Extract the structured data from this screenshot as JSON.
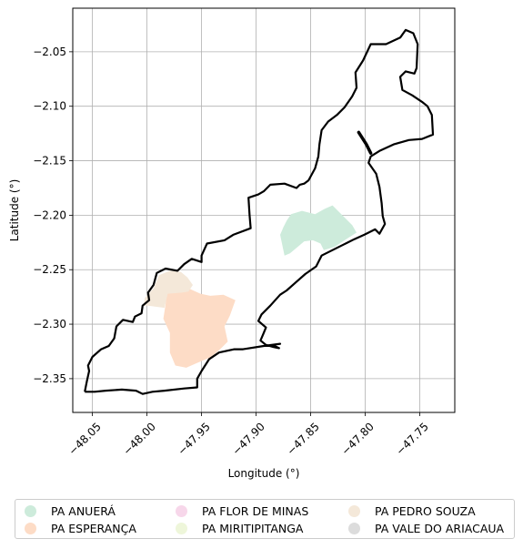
{
  "chart_data": {
    "type": "map",
    "xlabel": "Longitude (°)",
    "ylabel": "Latitude (°)",
    "xlim": [
      -48.068,
      -47.718
    ],
    "ylim": [
      -2.381,
      -2.01
    ],
    "x_ticks": [
      -48.05,
      -48.0,
      -47.95,
      -47.9,
      -47.85,
      -47.8,
      -47.75
    ],
    "x_tick_labels": [
      "−48.05",
      "−48.00",
      "−47.95",
      "−47.90",
      "−47.85",
      "−47.80",
      "−47.75"
    ],
    "y_ticks": [
      -2.05,
      -2.1,
      -2.15,
      -2.2,
      -2.25,
      -2.3,
      -2.35
    ],
    "y_tick_labels": [
      "−2.05",
      "−2.10",
      "−2.15",
      "−2.20",
      "−2.25",
      "−2.30",
      "−2.35"
    ],
    "grid": true,
    "legend_position": "below",
    "legend": [
      {
        "name": "PA ANUERÁ",
        "color": "#cdebdb"
      },
      {
        "name": "PA ESPERANÇA",
        "color": "#fddcc6"
      },
      {
        "name": "PA FLOR DE MINAS",
        "color": "#f7d7ea"
      },
      {
        "name": "PA MIRITIPITANGA",
        "color": "#eef6da"
      },
      {
        "name": "PA PEDRO SOUZA",
        "color": "#f4e8d9"
      },
      {
        "name": "PA VALE DO ARIACAUA",
        "color": "#dcdcdc"
      }
    ],
    "boundary": [
      [
        -48.057,
        -2.362
      ],
      [
        -48.055,
        -2.352
      ],
      [
        -48.053,
        -2.343
      ],
      [
        -48.054,
        -2.338
      ],
      [
        -48.05,
        -2.33
      ],
      [
        -48.042,
        -2.323
      ],
      [
        -48.035,
        -2.32
      ],
      [
        -48.03,
        -2.313
      ],
      [
        -48.028,
        -2.302
      ],
      [
        -48.022,
        -2.296
      ],
      [
        -48.013,
        -2.298
      ],
      [
        -48.011,
        -2.293
      ],
      [
        -48.005,
        -2.29
      ],
      [
        -48.004,
        -2.283
      ],
      [
        -47.998,
        -2.278
      ],
      [
        -47.999,
        -2.271
      ],
      [
        -47.994,
        -2.264
      ],
      [
        -47.991,
        -2.253
      ],
      [
        -47.983,
        -2.249
      ],
      [
        -47.972,
        -2.251
      ],
      [
        -47.966,
        -2.245
      ],
      [
        -47.959,
        -2.24
      ],
      [
        -47.95,
        -2.243
      ],
      [
        -47.95,
        -2.237
      ],
      [
        -47.945,
        -2.226
      ],
      [
        -47.929,
        -2.223
      ],
      [
        -47.921,
        -2.218
      ],
      [
        -47.905,
        -2.212
      ],
      [
        -47.906,
        -2.2
      ],
      [
        -47.907,
        -2.184
      ],
      [
        -47.898,
        -2.181
      ],
      [
        -47.893,
        -2.178
      ],
      [
        -47.887,
        -2.172
      ],
      [
        -47.874,
        -2.171
      ],
      [
        -47.863,
        -2.175
      ],
      [
        -47.86,
        -2.172
      ],
      [
        -47.856,
        -2.171
      ],
      [
        -47.852,
        -2.168
      ],
      [
        -47.846,
        -2.157
      ],
      [
        -47.843,
        -2.146
      ],
      [
        -47.842,
        -2.135
      ],
      [
        -47.84,
        -2.122
      ],
      [
        -47.834,
        -2.114
      ],
      [
        -47.826,
        -2.108
      ],
      [
        -47.819,
        -2.101
      ],
      [
        -47.812,
        -2.091
      ],
      [
        -47.808,
        -2.083
      ],
      [
        -47.809,
        -2.069
      ],
      [
        -47.802,
        -2.058
      ],
      [
        -47.795,
        -2.043
      ],
      [
        -47.781,
        -2.043
      ],
      [
        -47.768,
        -2.037
      ],
      [
        -47.763,
        -2.03
      ],
      [
        -47.756,
        -2.033
      ],
      [
        -47.752,
        -2.043
      ],
      [
        -47.753,
        -2.065
      ],
      [
        -47.755,
        -2.07
      ],
      [
        -47.763,
        -2.068
      ],
      [
        -47.768,
        -2.073
      ],
      [
        -47.766,
        -2.085
      ],
      [
        -47.757,
        -2.09
      ],
      [
        -47.748,
        -2.096
      ],
      [
        -47.743,
        -2.1
      ],
      [
        -47.739,
        -2.108
      ],
      [
        -47.738,
        -2.126
      ],
      [
        -47.748,
        -2.13
      ],
      [
        -47.76,
        -2.131
      ],
      [
        -47.774,
        -2.135
      ],
      [
        -47.787,
        -2.141
      ],
      [
        -47.795,
        -2.146
      ],
      [
        -47.797,
        -2.152
      ],
      [
        -47.79,
        -2.162
      ],
      [
        -47.787,
        -2.174
      ],
      [
        -47.785,
        -2.189
      ],
      [
        -47.784,
        -2.201
      ],
      [
        -47.782,
        -2.208
      ],
      [
        -47.787,
        -2.217
      ],
      [
        -47.791,
        -2.213
      ],
      [
        -47.801,
        -2.218
      ],
      [
        -47.81,
        -2.222
      ],
      [
        -47.82,
        -2.227
      ],
      [
        -47.83,
        -2.232
      ],
      [
        -47.84,
        -2.237
      ],
      [
        -47.845,
        -2.247
      ],
      [
        -47.855,
        -2.254
      ],
      [
        -47.863,
        -2.261
      ],
      [
        -47.872,
        -2.269
      ],
      [
        -47.878,
        -2.273
      ],
      [
        -47.887,
        -2.283
      ],
      [
        -47.895,
        -2.291
      ],
      [
        -47.898,
        -2.297
      ],
      [
        -47.891,
        -2.303
      ],
      [
        -47.893,
        -2.308
      ],
      [
        -47.896,
        -2.315
      ],
      [
        -47.891,
        -2.319
      ],
      [
        -47.884,
        -2.321
      ],
      [
        -47.879,
        -2.322
      ],
      [
        -47.885,
        -2.319
      ],
      [
        -47.878,
        -2.318
      ],
      [
        -47.893,
        -2.32
      ],
      [
        -47.912,
        -2.323
      ],
      [
        -47.92,
        -2.323
      ],
      [
        -47.934,
        -2.326
      ],
      [
        -47.943,
        -2.332
      ],
      [
        -47.95,
        -2.343
      ],
      [
        -47.954,
        -2.35
      ],
      [
        -47.954,
        -2.358
      ],
      [
        -47.966,
        -2.359
      ],
      [
        -47.984,
        -2.361
      ],
      [
        -47.995,
        -2.362
      ],
      [
        -48.004,
        -2.364
      ],
      [
        -48.01,
        -2.361
      ],
      [
        -48.023,
        -2.36
      ],
      [
        -48.038,
        -2.361
      ],
      [
        -48.048,
        -2.362
      ],
      [
        -48.057,
        -2.362
      ]
    ],
    "boundary_tail": [
      [
        -47.806,
        -2.124
      ],
      [
        -47.799,
        -2.135
      ],
      [
        -47.795,
        -2.143
      ]
    ],
    "regions": [
      {
        "legend_index": 0,
        "coords": [
          [
            -47.874,
            -2.237
          ],
          [
            -47.878,
            -2.218
          ],
          [
            -47.875,
            -2.211
          ],
          [
            -47.872,
            -2.205
          ],
          [
            -47.868,
            -2.199
          ],
          [
            -47.858,
            -2.196
          ],
          [
            -47.846,
            -2.199
          ],
          [
            -47.837,
            -2.194
          ],
          [
            -47.83,
            -2.191
          ],
          [
            -47.812,
            -2.209
          ],
          [
            -47.808,
            -2.216
          ],
          [
            -47.819,
            -2.223
          ],
          [
            -47.828,
            -2.229
          ],
          [
            -47.838,
            -2.232
          ],
          [
            -47.841,
            -2.226
          ],
          [
            -47.848,
            -2.223
          ],
          [
            -47.856,
            -2.224
          ],
          [
            -47.863,
            -2.23
          ],
          [
            -47.869,
            -2.235
          ],
          [
            -47.874,
            -2.237
          ]
        ]
      },
      {
        "legend_index": 1,
        "coords": [
          [
            -47.985,
            -2.295
          ],
          [
            -47.983,
            -2.282
          ],
          [
            -47.982,
            -2.27
          ],
          [
            -47.967,
            -2.266
          ],
          [
            -47.96,
            -2.268
          ],
          [
            -47.951,
            -2.272
          ],
          [
            -47.942,
            -2.274
          ],
          [
            -47.93,
            -2.273
          ],
          [
            -47.919,
            -2.278
          ],
          [
            -47.924,
            -2.292
          ],
          [
            -47.929,
            -2.302
          ],
          [
            -47.926,
            -2.316
          ],
          [
            -47.934,
            -2.324
          ],
          [
            -47.941,
            -2.33
          ],
          [
            -47.955,
            -2.336
          ],
          [
            -47.964,
            -2.34
          ],
          [
            -47.974,
            -2.338
          ],
          [
            -47.979,
            -2.326
          ],
          [
            -47.979,
            -2.308
          ],
          [
            -47.985,
            -2.295
          ]
        ]
      },
      {
        "legend_index": 4,
        "coords": [
          [
            -48.002,
            -2.276
          ],
          [
            -47.994,
            -2.267
          ],
          [
            -47.989,
            -2.255
          ],
          [
            -47.979,
            -2.251
          ],
          [
            -47.969,
            -2.252
          ],
          [
            -47.963,
            -2.257
          ],
          [
            -47.958,
            -2.264
          ],
          [
            -47.962,
            -2.27
          ],
          [
            -47.968,
            -2.271
          ],
          [
            -47.981,
            -2.272
          ],
          [
            -47.984,
            -2.285
          ],
          [
            -47.999,
            -2.283
          ],
          [
            -48.003,
            -2.283
          ],
          [
            -48.002,
            -2.276
          ]
        ]
      }
    ]
  }
}
